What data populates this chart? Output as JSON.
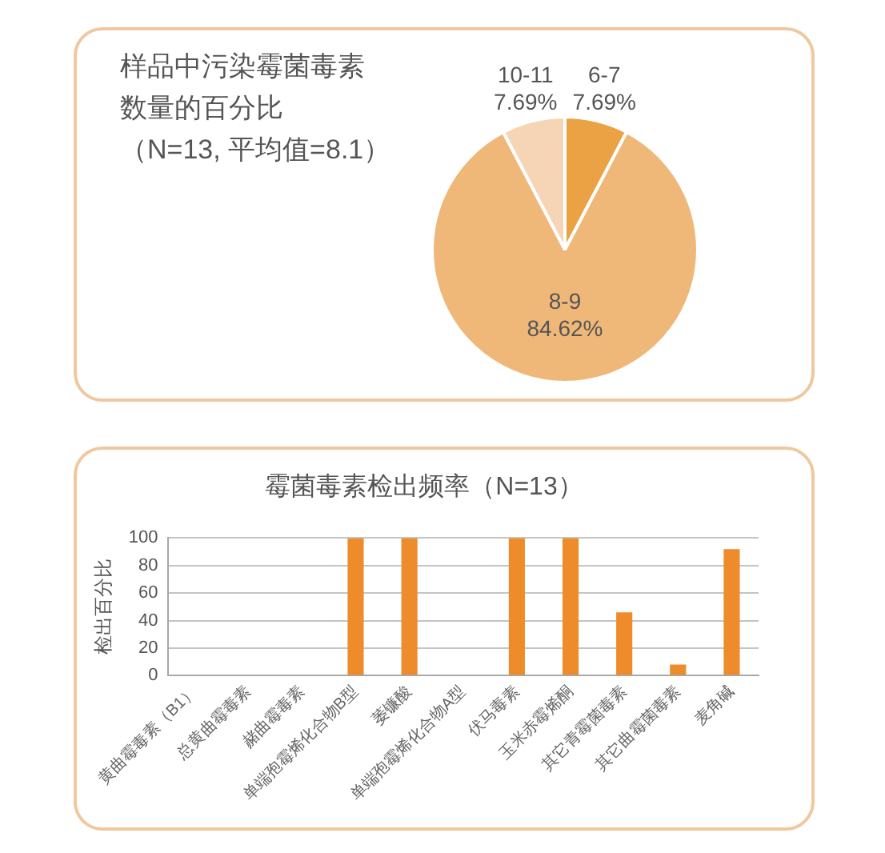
{
  "chart_data": [
    {
      "type": "pie",
      "title": "样品中污染霉菌毒素数量的百分比",
      "subtitle": "（N=13, 平均值=8.1）",
      "categories": [
        "6-7",
        "8-9",
        "10-11"
      ],
      "values": [
        7.69,
        84.62,
        7.69
      ],
      "colors": [
        "#eaa245",
        "#f0b878",
        "#f6d5b6"
      ],
      "value_labels": [
        "7.69%",
        "84.62%",
        "7.69%"
      ]
    },
    {
      "type": "bar",
      "title": "霉菌毒素检出频率（N=13）",
      "ylabel": "检出百分比",
      "categories": [
        "黄曲霉毒素（B1）",
        "总黄曲霉毒素",
        "赭曲霉毒素",
        "单端孢霉烯化合物B型",
        "萎镰酸",
        "单端孢霉烯化合物A型",
        "伏马毒素",
        "玉米赤霉烯酮",
        "其它青霉菌毒素",
        "其它曲霉菌毒素",
        "麦角碱"
      ],
      "values": [
        0,
        0,
        0,
        100,
        100,
        0,
        100,
        100,
        46,
        8,
        92
      ],
      "color": "#ee8b2b",
      "ylim": [
        0,
        100
      ],
      "yticks": [
        0,
        20,
        40,
        60,
        80,
        100
      ],
      "grid": "y"
    }
  ]
}
